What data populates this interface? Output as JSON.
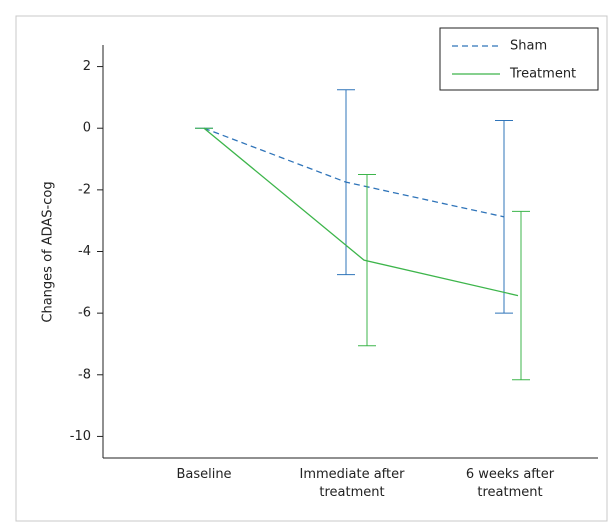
{
  "chart_data": {
    "type": "line",
    "ylabel": "Changes of ADAS-cog",
    "categories": [
      "Baseline",
      "Immediate after\ntreatment",
      "6 weeks after\ntreatment"
    ],
    "series": [
      {
        "name": "Sham",
        "color": "#2f74b9",
        "dashed": true,
        "values": [
          0,
          -1.75,
          -2.875
        ],
        "errors": [
          0,
          3.0,
          3.125
        ]
      },
      {
        "name": "Treatment",
        "color": "#3db54b",
        "dashed": false,
        "values": [
          0,
          -4.28,
          -5.43
        ],
        "errors": [
          0,
          2.78,
          2.73
        ]
      }
    ],
    "ylim": [
      -10.7,
      2.7
    ],
    "yticks": [
      2,
      0,
      -2,
      -4,
      -6,
      -8,
      -10
    ],
    "legend": "upper right"
  }
}
